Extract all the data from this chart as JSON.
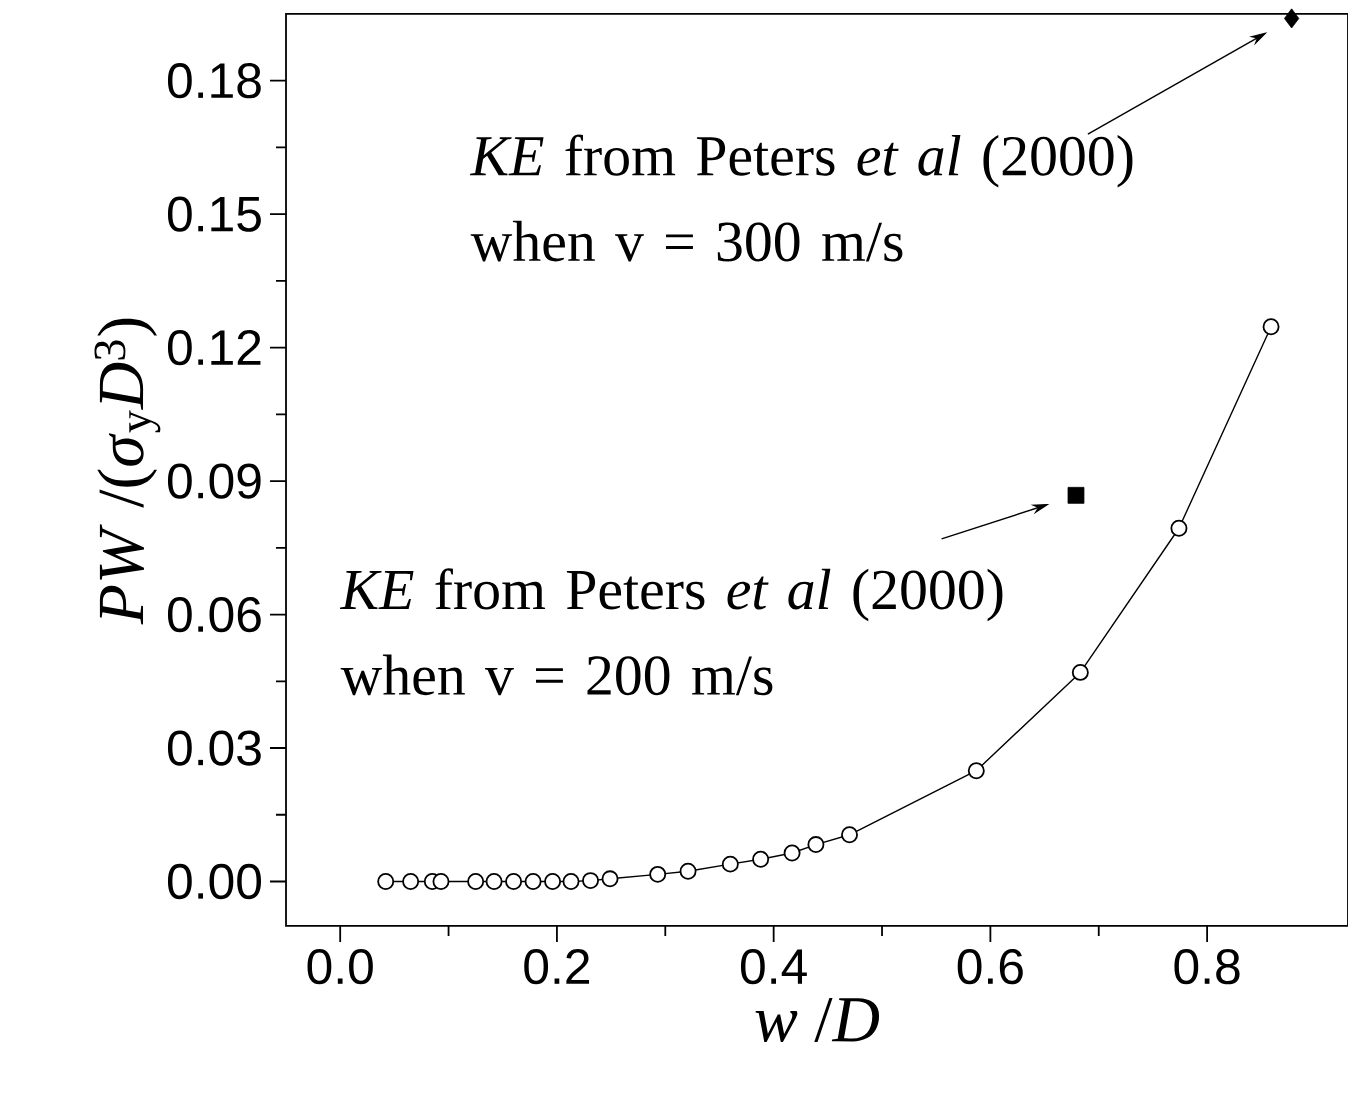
{
  "chart_data": {
    "type": "line",
    "xlabel": "*w* /*D*",
    "ylabel": "*PW* /(*σ*$_{y}$*D*$^{3}$)",
    "xlim": [
      -0.05,
      0.93
    ],
    "ylim": [
      -0.01,
      0.195
    ],
    "xticks": [
      {
        "value": 0,
        "label": "0.0"
      },
      0.2,
      0.4,
      0.6,
      0.8
    ],
    "yticks": [
      {
        "value": 0,
        "label": "0.00"
      },
      {
        "value": 0.03,
        "label": "0.03"
      },
      {
        "value": 0.06,
        "label": "0.06"
      },
      {
        "value": 0.09,
        "label": "0.09"
      },
      {
        "value": 0.12,
        "label": "0.12"
      },
      {
        "value": 0.15,
        "label": "0.15"
      },
      {
        "value": 0.18,
        "label": "0.18"
      }
    ],
    "grid": false,
    "series": [
      {
        "marker": "circle",
        "color": "#000000",
        "x": [
          0.042,
          0.065,
          0.085,
          0.093,
          0.125,
          0.142,
          0.16,
          0.178,
          0.196,
          0.213,
          0.231,
          0.249,
          0.293,
          0.321,
          0.36,
          0.388,
          0.417,
          0.439,
          0.47,
          0.587,
          0.683,
          0.774,
          0.859
        ],
        "values": [
          0,
          0,
          0,
          0,
          0,
          0,
          0,
          0,
          0,
          0,
          0.0002,
          0.0006,
          0.0016,
          0.0023,
          0.0039,
          0.005,
          0.0064,
          0.0083,
          0.0105,
          0.0249,
          0.047,
          0.0794,
          0.1247
        ]
      },
      {
        "type": "scatter",
        "marker": "square",
        "color": "#000000",
        "x": [
          0.679
        ],
        "values": [
          0.0868
        ]
      },
      {
        "type": "scatter",
        "marker": "diamond",
        "color": "#000000",
        "x": [
          0.878
        ],
        "values": [
          0.194
        ]
      }
    ],
    "annotations": [
      "*KE* from Peters *et al* (2000) when v = 300 m/s",
      "*KE* from Peters *et al* (2000) when v = 200 m/s"
    ]
  }
}
